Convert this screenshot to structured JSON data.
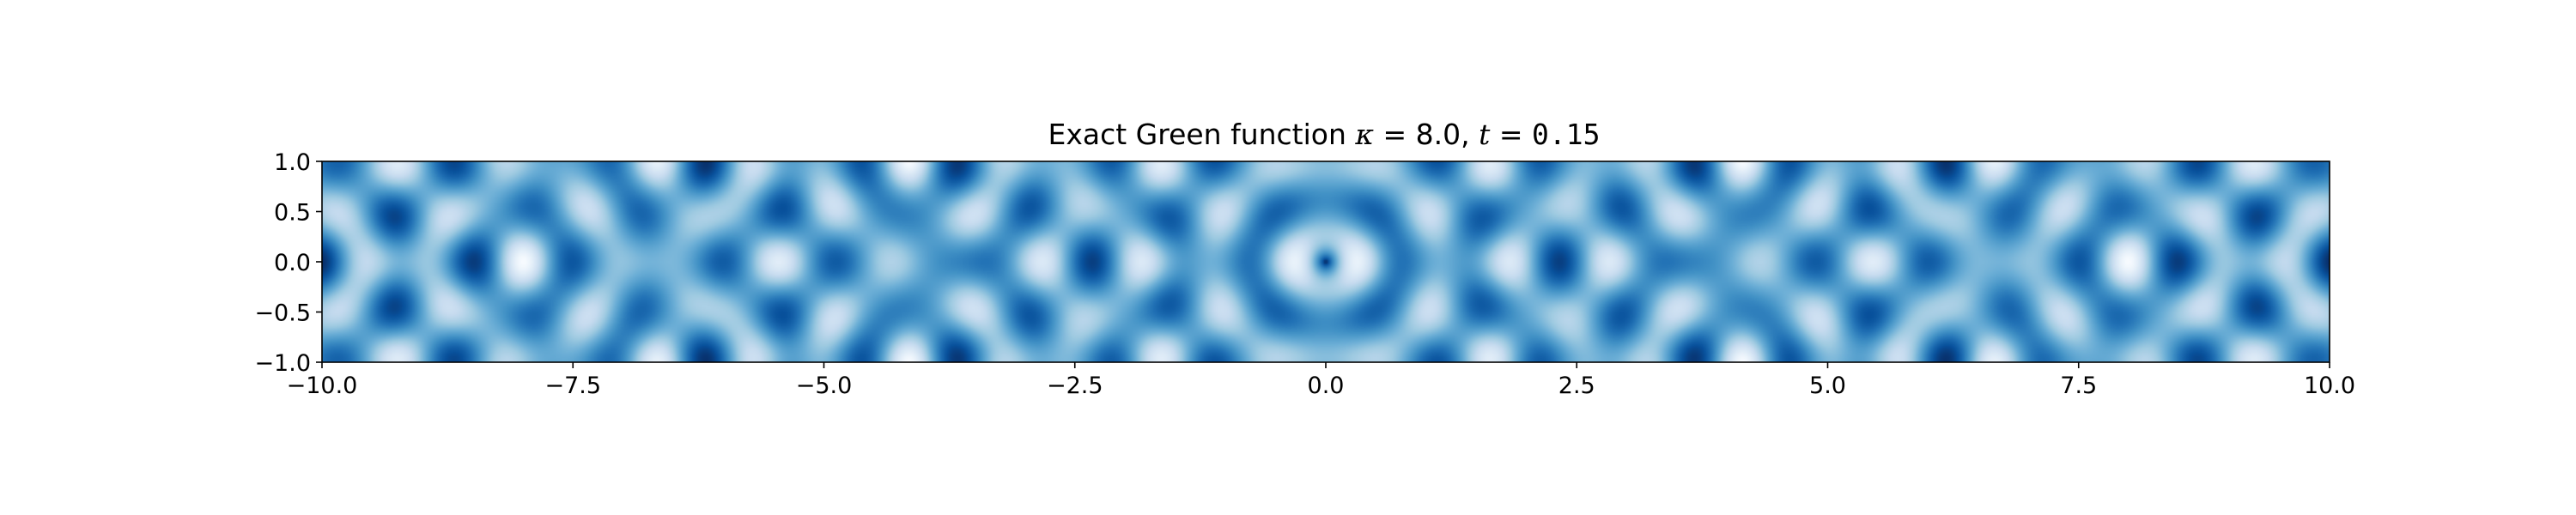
{
  "chart_data": {
    "type": "heatmap",
    "title": {
      "prefix": "Exact Green function ",
      "kappa_symbol": "κ",
      "kappa_eq": " = 8.0, ",
      "t_symbol": "t",
      "t_eq": " = ",
      "t_value": "0.15"
    },
    "xlabel": "",
    "ylabel": "",
    "xlim": [
      -10.0,
      10.0
    ],
    "ylim": [
      -1.0,
      1.0
    ],
    "x_ticks": [
      -10.0,
      -7.5,
      -5.0,
      -2.5,
      0.0,
      2.5,
      5.0,
      7.5,
      10.0
    ],
    "x_tick_labels": [
      "−10.0",
      "−7.5",
      "−5.0",
      "−2.5",
      "0.0",
      "2.5",
      "5.0",
      "7.5",
      "10.0"
    ],
    "y_ticks": [
      1.0,
      0.5,
      0.0,
      -0.5,
      -1.0
    ],
    "y_tick_labels": [
      "1.0",
      "0.5",
      "0.0",
      "−0.5",
      "−1.0"
    ],
    "kappa": 8.0,
    "t": 0.15,
    "colormap": "Blues",
    "colormap_low": "#f7fbff",
    "colormap_high": "#08306b",
    "grid": false,
    "colorbar": false
  }
}
